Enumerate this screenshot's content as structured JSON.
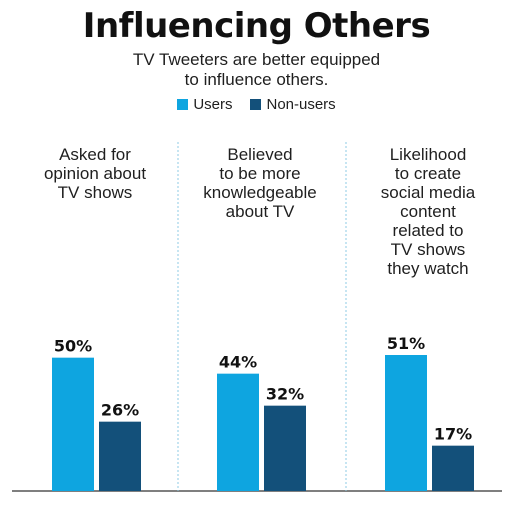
{
  "title": "Influencing Others",
  "subtitle_lines": [
    "TV Tweeters are better equipped",
    "to influence others."
  ],
  "legend": [
    {
      "label": "Users",
      "color": "#0ea5e0"
    },
    {
      "label": "Non-users",
      "color": "#13507a"
    }
  ],
  "chart_data": {
    "type": "bar",
    "title": "Influencing Others",
    "categories": [
      [
        "Asked for",
        "opinion about",
        "TV shows"
      ],
      [
        "Believed",
        "to be more",
        "knowledgeable",
        "about TV"
      ],
      [
        "Likelihood",
        "to create",
        "social media",
        "content",
        "related to",
        "TV shows",
        "they watch"
      ]
    ],
    "series": [
      {
        "name": "Users",
        "values": [
          50,
          44,
          51
        ],
        "labels": [
          "50%",
          "44%",
          "51%"
        ],
        "color": "#0ea5e0"
      },
      {
        "name": "Non-users",
        "values": [
          26,
          32,
          17
        ],
        "labels": [
          "26%",
          "32%",
          "17%"
        ],
        "color": "#13507a"
      }
    ],
    "ylim": [
      0,
      51
    ],
    "grid": false,
    "legend_position": "top-center"
  }
}
